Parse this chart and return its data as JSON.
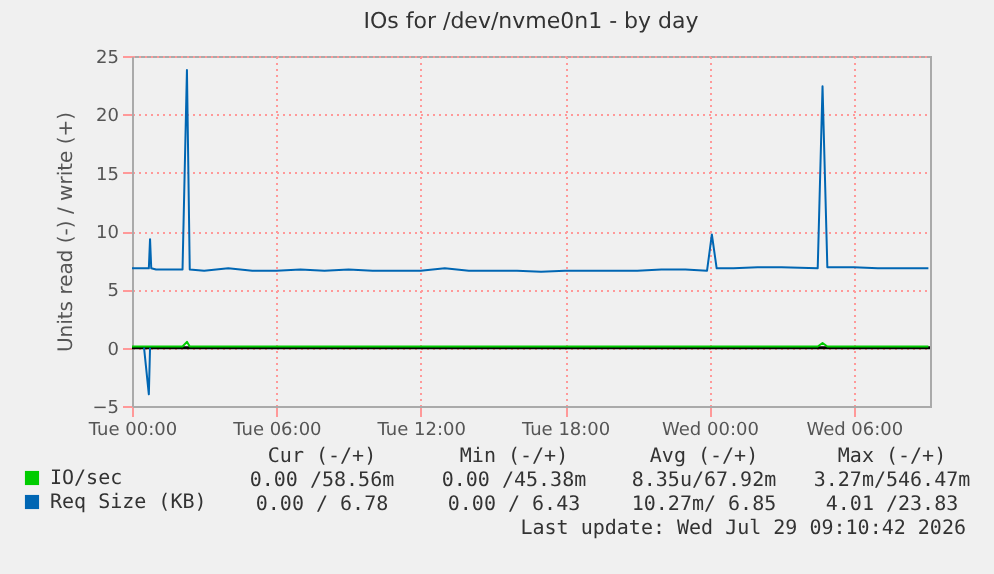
{
  "chart_data": {
    "type": "line",
    "title": "IOs for /dev/nvme0n1 - by day",
    "ylabel": "Units read (-) / write (+)",
    "x": [
      "2026-07-28T00:00",
      "2026-07-28T00:30",
      "2026-07-28T00:42",
      "2026-07-28T00:45",
      "2026-07-28T00:48",
      "2026-07-28T01:00",
      "2026-07-28T01:30",
      "2026-07-28T02:06",
      "2026-07-28T02:17",
      "2026-07-28T02:24",
      "2026-07-28T03:00",
      "2026-07-28T04:00",
      "2026-07-28T05:00",
      "2026-07-28T06:00",
      "2026-07-28T07:00",
      "2026-07-28T08:00",
      "2026-07-28T09:00",
      "2026-07-28T10:00",
      "2026-07-28T11:00",
      "2026-07-28T12:00",
      "2026-07-28T13:00",
      "2026-07-28T14:00",
      "2026-07-28T15:00",
      "2026-07-28T16:00",
      "2026-07-28T17:00",
      "2026-07-28T18:00",
      "2026-07-28T19:00",
      "2026-07-28T20:00",
      "2026-07-28T21:00",
      "2026-07-28T22:00",
      "2026-07-28T23:00",
      "2026-07-28T23:54",
      "2026-07-29T00:06",
      "2026-07-29T00:18",
      "2026-07-29T01:00",
      "2026-07-29T02:00",
      "2026-07-29T03:00",
      "2026-07-29T04:30",
      "2026-07-29T04:42",
      "2026-07-29T04:54",
      "2026-07-29T06:00",
      "2026-07-29T07:00",
      "2026-07-29T08:00",
      "2026-07-29T09:06"
    ],
    "series": [
      {
        "name": "IO/sec",
        "color": "#00cc00",
        "values": [
          0.1,
          0.1,
          0.1,
          0.1,
          0.1,
          0.1,
          0.1,
          0.1,
          0.5,
          0.1,
          0.1,
          0.1,
          0.1,
          0.1,
          0.1,
          0.1,
          0.1,
          0.1,
          0.1,
          0.1,
          0.1,
          0.1,
          0.1,
          0.1,
          0.1,
          0.1,
          0.1,
          0.1,
          0.1,
          0.1,
          0.1,
          0.1,
          0.1,
          0.1,
          0.1,
          0.1,
          0.1,
          0.1,
          0.4,
          0.1,
          0.1,
          0.1,
          0.1,
          0.1
        ]
      },
      {
        "name": "Req Size (KB)",
        "color": "#0066b3",
        "values": [
          6.8,
          6.8,
          6.8,
          9.3,
          6.8,
          6.7,
          6.7,
          6.7,
          23.8,
          6.7,
          6.6,
          6.8,
          6.6,
          6.6,
          6.7,
          6.6,
          6.7,
          6.6,
          6.6,
          6.6,
          6.8,
          6.6,
          6.6,
          6.6,
          6.5,
          6.6,
          6.6,
          6.6,
          6.6,
          6.7,
          6.7,
          6.6,
          9.7,
          6.8,
          6.8,
          6.9,
          6.9,
          6.8,
          22.4,
          6.9,
          6.9,
          6.8,
          6.8,
          6.8
        ]
      },
      {
        "color": "#0066b3",
        "values": [
          null,
          0,
          -4.0,
          0,
          null,
          null,
          null,
          null,
          null,
          null,
          null,
          null,
          null,
          null,
          null,
          null,
          null,
          null,
          null,
          null,
          null,
          null,
          null,
          null,
          null,
          null,
          null,
          null,
          null,
          null,
          null,
          null,
          null,
          null,
          null,
          null,
          null,
          null,
          null,
          null,
          null,
          null,
          null,
          null
        ]
      }
    ],
    "xlim": [
      "2026-07-28T00:00",
      "2026-07-29T09:10"
    ],
    "xticks": [
      {
        "value": "2026-07-28T00:00",
        "label": "Tue 00:00"
      },
      {
        "value": "2026-07-28T06:00",
        "label": "Tue 06:00"
      },
      {
        "value": "2026-07-28T12:00",
        "label": "Tue 12:00"
      },
      {
        "value": "2026-07-28T18:00",
        "label": "Tue 18:00"
      },
      {
        "value": "2026-07-29T00:00",
        "label": "Wed 00:00"
      },
      {
        "value": "2026-07-29T06:00",
        "label": "Wed 06:00"
      }
    ],
    "ylim": [
      -5,
      25
    ],
    "yticks": [
      -5,
      0,
      5,
      10,
      15,
      20,
      25
    ],
    "ref_lines": [
      {
        "axis": "y",
        "value": 0,
        "color": "#000000"
      }
    ],
    "grid": true,
    "legend": "bottom left",
    "marker": "none",
    "line_style": "solid",
    "annotations": [
      "Cur (-/+)",
      "Min (-/+)",
      "Avg (-/+)",
      "Max (-/+)",
      "0.00 /58.56m",
      "0.00 /45.38m",
      "8.35u/67.92m",
      "3.27m/546.47m",
      "0.00 / 6.78",
      "0.00 / 6.43",
      "10.27m/ 6.85",
      "4.01 /23.83",
      "Last update: Wed Jul 29 09:10:42 2026"
    ]
  }
}
